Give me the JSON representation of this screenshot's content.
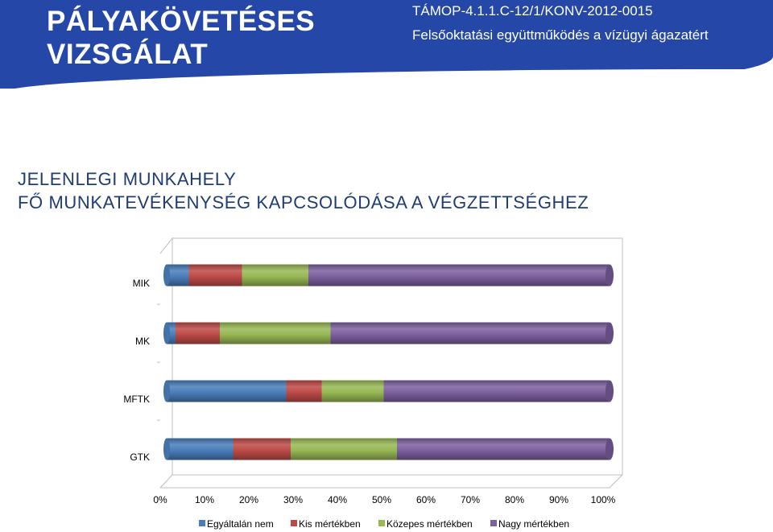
{
  "header": {
    "title_line1": "PÁLYAKÖVETÉSES",
    "title_line2": "VIZSGÁLAT",
    "project_code": "TÁMOP-4.1.1.C-12/1/KONV-2012-0015",
    "project_description": "Felsőoktatási együttműködés a vízügyi ágazatért"
  },
  "section": {
    "heading_line1": "JELENLEGI MUNKAHELY",
    "heading_line2": "FŐ MUNKATEVÉKENYSÉG KAPCSOLÓDÁSA A VÉGZETTSÉGHEZ"
  },
  "chart_data": {
    "type": "bar",
    "orientation": "horizontal",
    "stacked": "100%",
    "style": "3d-cylinder",
    "categories": [
      "MIK",
      "MK",
      "MFTK",
      "GTK"
    ],
    "series": [
      {
        "name": "Egyáltalán nem",
        "color": "#4a7ebb",
        "values": [
          5,
          2,
          27,
          15
        ]
      },
      {
        "name": "Kis mértékben",
        "color": "#be4b48",
        "values": [
          12,
          10,
          8,
          13
        ]
      },
      {
        "name": "Közepes mértékben",
        "color": "#98b954",
        "values": [
          15,
          25,
          14,
          24
        ]
      },
      {
        "name": "Nagy mértékben",
        "color": "#7d60a0",
        "values": [
          68,
          63,
          51,
          48
        ]
      }
    ],
    "x_ticks": [
      "0%",
      "10%",
      "20%",
      "30%",
      "40%",
      "50%",
      "60%",
      "70%",
      "80%",
      "90%",
      "100%"
    ],
    "xlim": [
      0,
      100
    ],
    "grid": false,
    "legend": "bottom"
  }
}
